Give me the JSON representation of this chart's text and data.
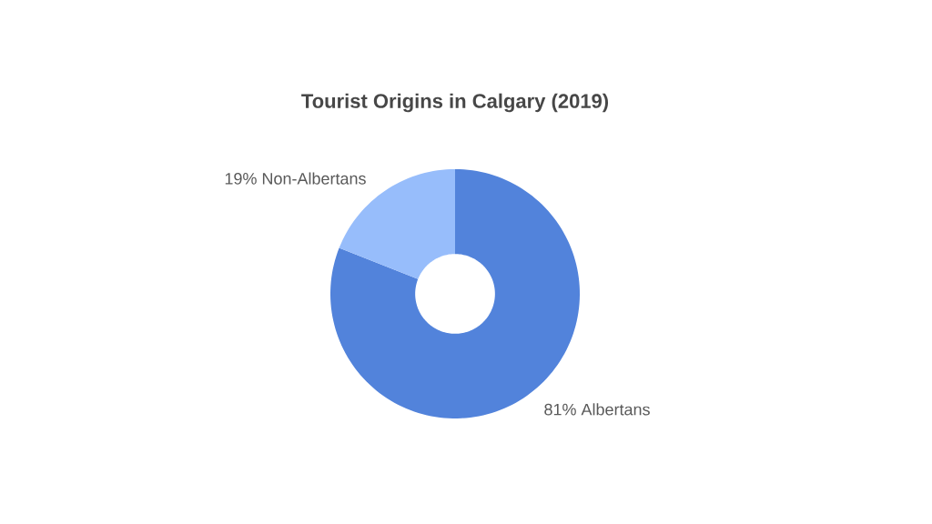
{
  "chart_data": {
    "type": "donut",
    "title": "Tourist Origins in Calgary (2019)",
    "categories": [
      "Albertans",
      "Non-Albertans"
    ],
    "values": [
      81,
      19
    ],
    "value_labels": [
      "81%",
      "19%"
    ],
    "colors": [
      "#5283db",
      "#97bdfb"
    ]
  }
}
